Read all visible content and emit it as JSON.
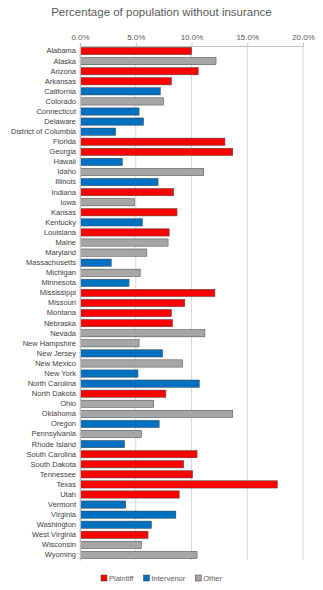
{
  "chart_data": {
    "type": "bar",
    "orientation": "horizontal",
    "title": "Percentage of population without insurance",
    "categories": [
      "Alabama",
      "Alaska",
      "Arizona",
      "Arkansas",
      "California",
      "Colorado",
      "Connecticut",
      "Delaware",
      "District of Columbia",
      "Florida",
      "Georgia",
      "Hawaii",
      "Idaho",
      "Illinois",
      "Indiana",
      "Iowa",
      "Kansas",
      "Kentucky",
      "Louisiana",
      "Maine",
      "Maryland",
      "Massachusetts",
      "Michigan",
      "Minnesota",
      "Mississippi",
      "Missouri",
      "Montana",
      "Nebraska",
      "Nevada",
      "New Hampshire",
      "New Jersey",
      "New Mexico",
      "New York",
      "North Carolina",
      "North Dakota",
      "Ohio",
      "Oklahoma",
      "Oregon",
      "Pennsylvania",
      "Rhode Island",
      "South Carolina",
      "South Dakota",
      "Tennessee",
      "Texas",
      "Utah",
      "Vermont",
      "Virginia",
      "Washington",
      "West Virginia",
      "Wisconsin",
      "Wyoming"
    ],
    "series": [
      {
        "name": "Plaintiff",
        "color": "#ff0000",
        "values": [
          10.0,
          null,
          10.6,
          8.2,
          null,
          null,
          null,
          null,
          null,
          13.0,
          13.7,
          null,
          null,
          null,
          8.4,
          null,
          8.7,
          null,
          8.0,
          null,
          null,
          null,
          null,
          null,
          12.1,
          9.4,
          8.2,
          8.3,
          null,
          null,
          null,
          null,
          null,
          null,
          7.7,
          null,
          null,
          null,
          null,
          null,
          10.5,
          9.3,
          10.1,
          17.7,
          8.9,
          null,
          null,
          null,
          6.1,
          null,
          null
        ]
      },
      {
        "name": "Intervenor",
        "color": "#0070c0",
        "values": [
          null,
          null,
          null,
          null,
          7.2,
          null,
          5.3,
          5.7,
          3.2,
          null,
          null,
          3.8,
          null,
          7.0,
          null,
          null,
          null,
          5.6,
          null,
          null,
          null,
          2.8,
          null,
          4.4,
          null,
          null,
          null,
          null,
          null,
          null,
          7.4,
          null,
          5.2,
          10.7,
          null,
          null,
          null,
          7.1,
          null,
          4.0,
          null,
          null,
          null,
          null,
          null,
          4.1,
          8.6,
          6.4,
          null,
          null,
          null
        ]
      },
      {
        "name": "Other",
        "color": "#a6a6a6",
        "values": [
          null,
          12.2,
          null,
          null,
          null,
          7.5,
          null,
          null,
          null,
          null,
          null,
          null,
          11.1,
          null,
          null,
          4.9,
          null,
          null,
          null,
          7.9,
          6.0,
          null,
          5.4,
          null,
          null,
          null,
          null,
          null,
          11.2,
          5.3,
          null,
          9.2,
          null,
          null,
          null,
          6.6,
          13.7,
          null,
          5.5,
          null,
          null,
          null,
          null,
          null,
          null,
          null,
          null,
          null,
          null,
          5.5,
          10.5
        ]
      }
    ],
    "xlim": [
      0,
      20
    ],
    "xticks": [
      {
        "value": 0,
        "label": "0.0%"
      },
      {
        "value": 5,
        "label": "5.0%"
      },
      {
        "value": 10,
        "label": "10.0%"
      },
      {
        "value": 15,
        "label": "15.0%"
      },
      {
        "value": 20,
        "label": "20.0%"
      }
    ],
    "grid": true,
    "legend": "bottom"
  }
}
